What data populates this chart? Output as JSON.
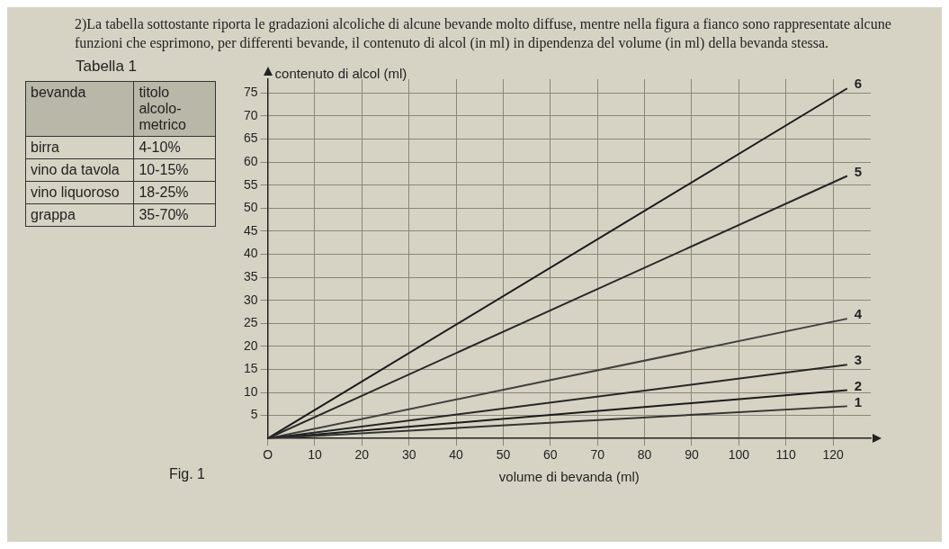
{
  "chart_data": [
    {
      "type": "other",
      "title": "Tabella 1",
      "annotations": [
        "bevanda",
        "titolo alcolo-metrico",
        "birra",
        "4-10%",
        "vino da tavola",
        "10-15%",
        "vino liquoroso",
        "18-25%",
        "grappa",
        "35-70%"
      ]
    },
    {
      "type": "line",
      "title": "2)La tabella sottostante riporta le gradazioni alcoliche di alcune bevande molto diffuse, mentre nella figura a fianco sono rappresentate alcune funzioni che esprimono, per differenti bevande, il contenuto di alcol (in ml) in dipendenza del volume (in ml) della bevanda stessa.",
      "xlabel": "volume di bevanda (ml)",
      "ylabel": "contenuto di alcol (ml)",
      "annotations": [
        "Fig. 1"
      ],
      "x": [
        0,
        123
      ],
      "series": [
        {
          "name": "1",
          "color": "#333333",
          "values": [
            0,
            7
          ]
        },
        {
          "name": "2",
          "color": "#1a1a1a",
          "values": [
            0,
            10.5
          ]
        },
        {
          "name": "3",
          "color": "#262626",
          "values": [
            0,
            16
          ]
        },
        {
          "name": "4",
          "color": "#404040",
          "values": [
            0,
            26
          ]
        },
        {
          "name": "5",
          "color": "#262626",
          "values": [
            0,
            57
          ]
        },
        {
          "name": "6",
          "color": "#1a1a1a",
          "values": [
            0,
            76
          ]
        }
      ],
      "xlim": [
        0,
        128
      ],
      "ylim": [
        0,
        78
      ],
      "xticks": [
        {
          "value": 0,
          "label": "O"
        },
        10,
        20,
        30,
        40,
        50,
        60,
        70,
        80,
        90,
        100,
        110,
        120
      ],
      "yticks": [
        5,
        10,
        15,
        20,
        25,
        30,
        35,
        40,
        45,
        50,
        55,
        60,
        65,
        70,
        75
      ],
      "grid": true,
      "marker": "none",
      "line_style": "solid",
      "legend": false
    }
  ]
}
